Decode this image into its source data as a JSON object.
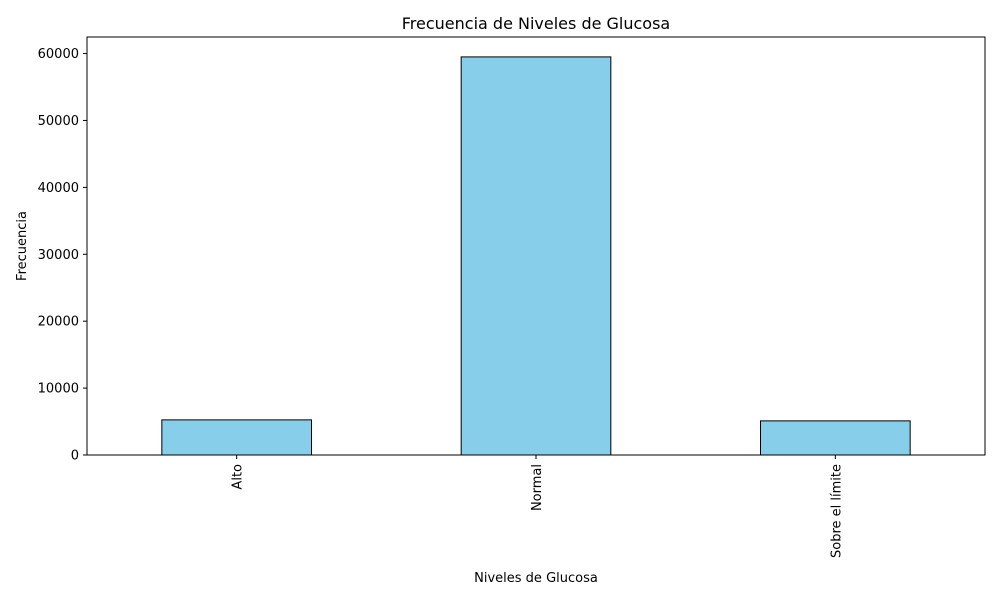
{
  "chart_data": {
    "type": "bar",
    "title": "Frecuencia de Niveles de Glucosa",
    "xlabel": "Niveles de Glucosa",
    "ylabel": "Frecuencia",
    "categories": [
      "Alto",
      "Normal",
      "Sobre el límite"
    ],
    "values": [
      5250,
      59500,
      5100
    ],
    "ylim": [
      0,
      62475
    ],
    "yticks": [
      0,
      10000,
      20000,
      30000,
      40000,
      50000,
      60000
    ],
    "ytick_labels": [
      "0",
      "10000",
      "20000",
      "30000",
      "40000",
      "50000",
      "60000"
    ],
    "x_tick_rotation": "vertical",
    "grid": false,
    "legend": "none",
    "colors": {
      "bar_fill": "#87CEEB",
      "bar_edge": "#000000",
      "axis": "#000000"
    }
  }
}
